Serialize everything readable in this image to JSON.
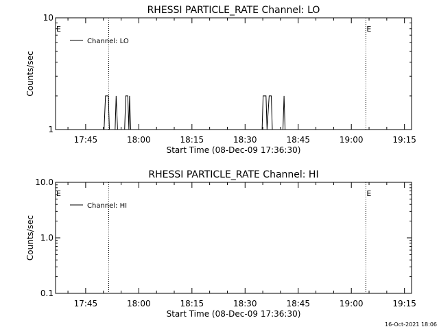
{
  "chart_data": [
    {
      "type": "line",
      "title": "RHESSI PARTICLE_RATE Channel: LO",
      "xlabel": "Start Time (08-Dec-09 17:36:30)",
      "ylabel": "Counts/sec",
      "yscale": "log",
      "ylim": [
        1,
        10
      ],
      "ytick_labels": [
        "1",
        "10"
      ],
      "ytick_values": [
        1,
        10
      ],
      "xlim_minutes_after_start": [
        0,
        100.5
      ],
      "xtick_labels": [
        "17:45",
        "18:00",
        "18:15",
        "18:30",
        "18:45",
        "19:00",
        "19:15"
      ],
      "xtick_minutes_after_start": [
        8.5,
        23.5,
        38.5,
        53.5,
        68.5,
        83.5,
        98.5
      ],
      "legend": {
        "position": "top-left",
        "entries": [
          {
            "name": "Channel: LO"
          }
        ]
      },
      "annotations": [
        {
          "text": "E",
          "x_minutes_after_start": 0,
          "y": 10
        },
        {
          "text": "E",
          "x_minutes_after_start": 87.6,
          "y": 10
        }
      ],
      "vlines_minutes_after_start": [
        15,
        87.6,
        102.2
      ],
      "series": [
        {
          "name": "Channel: LO",
          "points": [
            [
              13.7,
              1
            ],
            [
              14.1,
              2
            ],
            [
              14.9,
              2
            ],
            [
              15.2,
              1
            ],
            [
              16.8,
              1
            ],
            [
              17.1,
              2
            ],
            [
              17.5,
              1
            ],
            [
              19.5,
              1
            ],
            [
              19.8,
              2
            ],
            [
              20.4,
              2
            ],
            [
              20.7,
              1
            ],
            [
              20.9,
              2
            ],
            [
              21.2,
              1
            ],
            [
              58.3,
              1
            ],
            [
              58.6,
              2
            ],
            [
              59.4,
              2
            ],
            [
              59.7,
              1
            ],
            [
              60.3,
              2
            ],
            [
              60.9,
              2
            ],
            [
              61.2,
              1
            ],
            [
              64.2,
              1
            ],
            [
              64.5,
              2
            ],
            [
              64.8,
              1
            ]
          ]
        }
      ]
    },
    {
      "type": "line",
      "title": "RHESSI PARTICLE_RATE Channel: HI",
      "xlabel": "Start Time (08-Dec-09 17:36:30)",
      "ylabel": "Counts/sec",
      "yscale": "log",
      "ylim": [
        0.1,
        10
      ],
      "ytick_labels": [
        "0.1",
        "1.0",
        "10.0"
      ],
      "ytick_values": [
        0.1,
        1,
        10
      ],
      "xlim_minutes_after_start": [
        0,
        100.5
      ],
      "xtick_labels": [
        "17:45",
        "18:00",
        "18:15",
        "18:30",
        "18:45",
        "19:00",
        "19:15"
      ],
      "xtick_minutes_after_start": [
        8.5,
        23.5,
        38.5,
        53.5,
        68.5,
        83.5,
        98.5
      ],
      "legend": {
        "position": "top-left",
        "entries": [
          {
            "name": "Channel: HI"
          }
        ]
      },
      "annotations": [
        {
          "text": "E",
          "x_minutes_after_start": 0,
          "y": 10
        },
        {
          "text": "E",
          "x_minutes_after_start": 87.6,
          "y": 10
        }
      ],
      "vlines_minutes_after_start": [
        15,
        87.6,
        102.2
      ],
      "series": [
        {
          "name": "Channel: HI",
          "points": []
        }
      ]
    }
  ],
  "footer_timestamp": "16-Oct-2021 18:06"
}
